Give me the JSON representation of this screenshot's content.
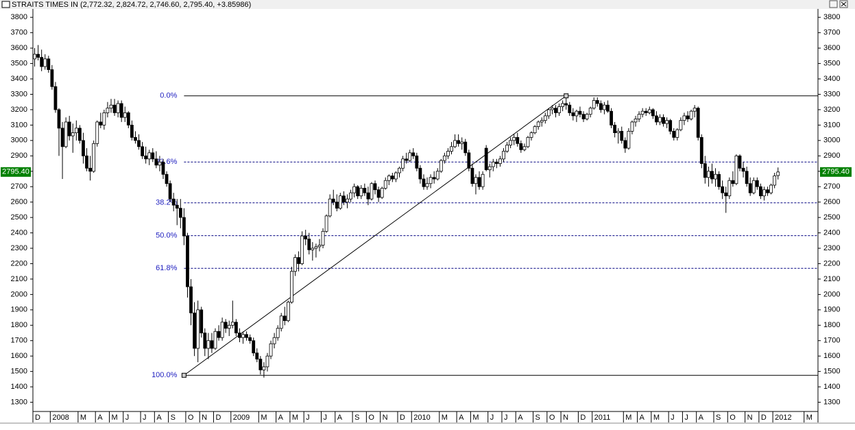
{
  "chart_data": {
    "type": "candlestick",
    "title": "STRAITS TIMES IN (2,772.32, 2,824.72, 2,746.60, 2,795.40, +3.85986)",
    "categories": [
      "D",
      null,
      null,
      null,
      null,
      "2008",
      null,
      null,
      null,
      null,
      null,
      null,
      null,
      "M",
      null,
      null,
      null,
      null,
      "A",
      null,
      null,
      null,
      "M",
      null,
      null,
      null,
      "J",
      null,
      null,
      null,
      null,
      "J",
      null,
      null,
      null,
      "A",
      null,
      null,
      null,
      "S",
      null,
      null,
      null,
      null,
      "O",
      null,
      null,
      null,
      "N",
      null,
      null,
      null,
      "D",
      null,
      null,
      null,
      null,
      "2009",
      null,
      null,
      null,
      null,
      null,
      null,
      null,
      "M",
      null,
      null,
      null,
      null,
      "A",
      null,
      null,
      null,
      "M",
      null,
      null,
      null,
      "J",
      null,
      null,
      null,
      null,
      "J",
      null,
      null,
      null,
      "A",
      null,
      null,
      null,
      null,
      "S",
      null,
      null,
      null,
      "O",
      null,
      null,
      null,
      "N",
      null,
      null,
      null,
      null,
      "D",
      null,
      null,
      null,
      "2010",
      null,
      null,
      null,
      null,
      null,
      null,
      null,
      "M",
      null,
      null,
      null,
      null,
      "A",
      null,
      null,
      null,
      "M",
      null,
      null,
      null,
      null,
      "J",
      null,
      null,
      null,
      "J",
      null,
      null,
      null,
      "A",
      null,
      null,
      null,
      null,
      "S",
      null,
      null,
      null,
      "O",
      null,
      null,
      null,
      "N",
      null,
      null,
      null,
      null,
      "D",
      null,
      null,
      null,
      "2011",
      null,
      null,
      null,
      null,
      null,
      null,
      null,
      null,
      "M",
      null,
      null,
      null,
      "A",
      null,
      null,
      null,
      "M",
      null,
      null,
      null,
      null,
      "J",
      null,
      null,
      null,
      "J",
      null,
      null,
      null,
      "A",
      null,
      null,
      null,
      null,
      "S",
      null,
      null,
      null,
      "O",
      null,
      null,
      null,
      null,
      "N",
      null,
      null,
      null,
      "D",
      null,
      null,
      null,
      "2012",
      null,
      null,
      null,
      null,
      null,
      null,
      null,
      null,
      "M",
      null,
      null,
      null
    ],
    "ohlc": [
      [
        3530,
        3600,
        3480,
        3560
      ],
      [
        3560,
        3620,
        3520,
        3540
      ],
      [
        3540,
        3590,
        3450,
        3480
      ],
      [
        3480,
        3560,
        3460,
        3530
      ],
      [
        3530,
        3550,
        3440,
        3460
      ],
      [
        3460,
        3490,
        3330,
        3350
      ],
      [
        3350,
        3380,
        3180,
        3200
      ],
      [
        3200,
        3210,
        2900,
        3080
      ],
      [
        3080,
        3120,
        2750,
        2960
      ],
      [
        2960,
        3150,
        2950,
        3120
      ],
      [
        3120,
        3160,
        3000,
        3030
      ],
      [
        3030,
        3110,
        2920,
        3050
      ],
      [
        3050,
        3130,
        3000,
        3080
      ],
      [
        3080,
        3100,
        2980,
        3000
      ],
      [
        3000,
        3050,
        2850,
        2900
      ],
      [
        2900,
        2950,
        2800,
        2820
      ],
      [
        2820,
        2900,
        2740,
        2800
      ],
      [
        2800,
        3000,
        2790,
        2980
      ],
      [
        2980,
        3130,
        2960,
        3120
      ],
      [
        3120,
        3180,
        3080,
        3100
      ],
      [
        3100,
        3200,
        3070,
        3180
      ],
      [
        3180,
        3250,
        3150,
        3210
      ],
      [
        3210,
        3270,
        3180,
        3230
      ],
      [
        3230,
        3270,
        3160,
        3180
      ],
      [
        3180,
        3260,
        3150,
        3240
      ],
      [
        3240,
        3260,
        3120,
        3150
      ],
      [
        3150,
        3220,
        3120,
        3180
      ],
      [
        3180,
        3190,
        3080,
        3100
      ],
      [
        3100,
        3130,
        3000,
        3020
      ],
      [
        3020,
        3060,
        2980,
        3000
      ],
      [
        3000,
        3040,
        2940,
        2960
      ],
      [
        2960,
        2990,
        2880,
        2900
      ],
      [
        2900,
        2960,
        2850,
        2880
      ],
      [
        2880,
        2940,
        2840,
        2920
      ],
      [
        2920,
        2950,
        2860,
        2880
      ],
      [
        2880,
        2930,
        2820,
        2840
      ],
      [
        2840,
        2900,
        2800,
        2860
      ],
      [
        2860,
        2880,
        2750,
        2780
      ],
      [
        2780,
        2800,
        2700,
        2720
      ],
      [
        2720,
        2740,
        2600,
        2620
      ],
      [
        2620,
        2660,
        2540,
        2580
      ],
      [
        2580,
        2620,
        2450,
        2560
      ],
      [
        2560,
        2620,
        2430,
        2500
      ],
      [
        2500,
        2560,
        2320,
        2380
      ],
      [
        2380,
        2400,
        1980,
        2050
      ],
      [
        2050,
        2100,
        1800,
        1880
      ],
      [
        1880,
        1950,
        1600,
        1650
      ],
      [
        1650,
        1960,
        1560,
        1900
      ],
      [
        1900,
        1920,
        1720,
        1750
      ],
      [
        1750,
        1780,
        1600,
        1650
      ],
      [
        1650,
        1750,
        1580,
        1700
      ],
      [
        1700,
        1750,
        1620,
        1650
      ],
      [
        1650,
        1780,
        1640,
        1760
      ],
      [
        1760,
        1800,
        1700,
        1720
      ],
      [
        1720,
        1850,
        1700,
        1820
      ],
      [
        1820,
        1840,
        1750,
        1780
      ],
      [
        1780,
        1830,
        1730,
        1800
      ],
      [
        1800,
        1960,
        1780,
        1820
      ],
      [
        1820,
        1840,
        1730,
        1750
      ],
      [
        1750,
        1780,
        1690,
        1720
      ],
      [
        1720,
        1760,
        1680,
        1740
      ],
      [
        1740,
        1760,
        1700,
        1720
      ],
      [
        1720,
        1740,
        1680,
        1700
      ],
      [
        1700,
        1720,
        1600,
        1620
      ],
      [
        1620,
        1650,
        1560,
        1580
      ],
      [
        1580,
        1600,
        1480,
        1510
      ],
      [
        1510,
        1560,
        1460,
        1530
      ],
      [
        1530,
        1620,
        1500,
        1600
      ],
      [
        1600,
        1700,
        1580,
        1680
      ],
      [
        1680,
        1750,
        1650,
        1720
      ],
      [
        1720,
        1800,
        1700,
        1780
      ],
      [
        1780,
        1880,
        1760,
        1860
      ],
      [
        1860,
        1920,
        1800,
        1830
      ],
      [
        1830,
        1960,
        1820,
        1950
      ],
      [
        1950,
        2180,
        1940,
        2150
      ],
      [
        2150,
        2260,
        2120,
        2240
      ],
      [
        2240,
        2280,
        2150,
        2200
      ],
      [
        2200,
        2410,
        2190,
        2380
      ],
      [
        2380,
        2420,
        2320,
        2360
      ],
      [
        2360,
        2400,
        2260,
        2290
      ],
      [
        2290,
        2340,
        2220,
        2300
      ],
      [
        2300,
        2330,
        2240,
        2310
      ],
      [
        2310,
        2360,
        2280,
        2320
      ],
      [
        2320,
        2430,
        2300,
        2410
      ],
      [
        2410,
        2520,
        2400,
        2510
      ],
      [
        2510,
        2650,
        2500,
        2620
      ],
      [
        2620,
        2680,
        2580,
        2600
      ],
      [
        2600,
        2650,
        2540,
        2560
      ],
      [
        2560,
        2660,
        2550,
        2640
      ],
      [
        2640,
        2670,
        2580,
        2600
      ],
      [
        2600,
        2650,
        2560,
        2620
      ],
      [
        2620,
        2680,
        2600,
        2660
      ],
      [
        2660,
        2720,
        2630,
        2700
      ],
      [
        2700,
        2710,
        2620,
        2640
      ],
      [
        2640,
        2710,
        2620,
        2690
      ],
      [
        2690,
        2720,
        2640,
        2660
      ],
      [
        2660,
        2700,
        2580,
        2620
      ],
      [
        2620,
        2730,
        2610,
        2720
      ],
      [
        2720,
        2740,
        2650,
        2680
      ],
      [
        2680,
        2700,
        2600,
        2630
      ],
      [
        2630,
        2700,
        2620,
        2690
      ],
      [
        2690,
        2760,
        2680,
        2740
      ],
      [
        2740,
        2780,
        2710,
        2770
      ],
      [
        2770,
        2790,
        2730,
        2750
      ],
      [
        2750,
        2800,
        2730,
        2790
      ],
      [
        2790,
        2830,
        2760,
        2820
      ],
      [
        2820,
        2900,
        2800,
        2880
      ],
      [
        2880,
        2920,
        2850,
        2870
      ],
      [
        2870,
        2940,
        2860,
        2920
      ],
      [
        2920,
        2950,
        2880,
        2900
      ],
      [
        2900,
        2920,
        2800,
        2820
      ],
      [
        2820,
        2840,
        2720,
        2750
      ],
      [
        2750,
        2780,
        2680,
        2700
      ],
      [
        2700,
        2760,
        2680,
        2720
      ],
      [
        2720,
        2780,
        2690,
        2760
      ],
      [
        2760,
        2800,
        2720,
        2750
      ],
      [
        2750,
        2820,
        2740,
        2800
      ],
      [
        2800,
        2880,
        2790,
        2870
      ],
      [
        2870,
        2920,
        2850,
        2900
      ],
      [
        2900,
        2950,
        2880,
        2930
      ],
      [
        2930,
        2990,
        2910,
        2960
      ],
      [
        2960,
        3040,
        2950,
        3000
      ],
      [
        3000,
        3040,
        2960,
        2980
      ],
      [
        2980,
        3020,
        2940,
        2990
      ],
      [
        2990,
        3010,
        2900,
        2920
      ],
      [
        2920,
        2940,
        2800,
        2820
      ],
      [
        2820,
        2850,
        2700,
        2720
      ],
      [
        2720,
        2780,
        2650,
        2760
      ],
      [
        2760,
        2800,
        2680,
        2700
      ],
      [
        2700,
        2800,
        2680,
        2780
      ],
      [
        2950,
        2970,
        2800,
        2810
      ],
      [
        2810,
        2850,
        2760,
        2830
      ],
      [
        2830,
        2880,
        2800,
        2860
      ],
      [
        2860,
        2880,
        2820,
        2850
      ],
      [
        2850,
        2900,
        2830,
        2880
      ],
      [
        2880,
        2950,
        2860,
        2930
      ],
      [
        2930,
        2990,
        2920,
        2970
      ],
      [
        2970,
        3020,
        2950,
        3000
      ],
      [
        3000,
        3040,
        2970,
        3020
      ],
      [
        3020,
        3050,
        2960,
        2980
      ],
      [
        2980,
        3000,
        2920,
        2940
      ],
      [
        2940,
        2980,
        2930,
        2960
      ],
      [
        2960,
        3030,
        2950,
        3020
      ],
      [
        3020,
        3060,
        3000,
        3050
      ],
      [
        3050,
        3100,
        3040,
        3090
      ],
      [
        3090,
        3130,
        3070,
        3120
      ],
      [
        3120,
        3150,
        3090,
        3130
      ],
      [
        3130,
        3180,
        3110,
        3160
      ],
      [
        3160,
        3210,
        3140,
        3200
      ],
      [
        3200,
        3230,
        3170,
        3210
      ],
      [
        3210,
        3230,
        3150,
        3180
      ],
      [
        3180,
        3240,
        3160,
        3220
      ],
      [
        3220,
        3260,
        3190,
        3240
      ],
      [
        3240,
        3290,
        3200,
        3230
      ],
      [
        3230,
        3250,
        3160,
        3180
      ],
      [
        3180,
        3210,
        3130,
        3160
      ],
      [
        3160,
        3200,
        3120,
        3190
      ],
      [
        3190,
        3220,
        3150,
        3170
      ],
      [
        3170,
        3190,
        3120,
        3140
      ],
      [
        3140,
        3180,
        3130,
        3170
      ],
      [
        3170,
        3220,
        3150,
        3210
      ],
      [
        3210,
        3280,
        3200,
        3260
      ],
      [
        3260,
        3280,
        3220,
        3240
      ],
      [
        3240,
        3260,
        3180,
        3200
      ],
      [
        3200,
        3250,
        3170,
        3230
      ],
      [
        3230,
        3260,
        3180,
        3190
      ],
      [
        3190,
        3210,
        3080,
        3100
      ],
      [
        3100,
        3120,
        3020,
        3050
      ],
      [
        3050,
        3080,
        2980,
        3060
      ],
      [
        3060,
        3090,
        2980,
        3000
      ],
      [
        3000,
        3020,
        2920,
        2950
      ],
      [
        2950,
        3080,
        2940,
        3060
      ],
      [
        3060,
        3130,
        3040,
        3120
      ],
      [
        3120,
        3160,
        3090,
        3140
      ],
      [
        3140,
        3190,
        3120,
        3170
      ],
      [
        3170,
        3210,
        3150,
        3190
      ],
      [
        3190,
        3210,
        3160,
        3180
      ],
      [
        3180,
        3220,
        3170,
        3200
      ],
      [
        3200,
        3210,
        3140,
        3160
      ],
      [
        3160,
        3190,
        3100,
        3120
      ],
      [
        3120,
        3170,
        3100,
        3150
      ],
      [
        3150,
        3170,
        3090,
        3110
      ],
      [
        3110,
        3150,
        3080,
        3130
      ],
      [
        3130,
        3140,
        3040,
        3060
      ],
      [
        3060,
        3080,
        3000,
        3020
      ],
      [
        3020,
        3080,
        3000,
        3070
      ],
      [
        3070,
        3150,
        3060,
        3130
      ],
      [
        3130,
        3180,
        3100,
        3160
      ],
      [
        3160,
        3190,
        3120,
        3140
      ],
      [
        3140,
        3200,
        3130,
        3190
      ],
      [
        3190,
        3230,
        3150,
        3210
      ],
      [
        3210,
        3220,
        3000,
        3020
      ],
      [
        3020,
        3040,
        2820,
        2850
      ],
      [
        2850,
        2900,
        2720,
        2760
      ],
      [
        2760,
        2830,
        2700,
        2800
      ],
      [
        2800,
        2850,
        2720,
        2750
      ],
      [
        2750,
        2820,
        2700,
        2780
      ],
      [
        2780,
        2800,
        2680,
        2700
      ],
      [
        2700,
        2740,
        2620,
        2660
      ],
      [
        2660,
        2700,
        2530,
        2640
      ],
      [
        2640,
        2760,
        2620,
        2740
      ],
      [
        2740,
        2800,
        2700,
        2720
      ],
      [
        2720,
        2910,
        2710,
        2900
      ],
      [
        2900,
        2910,
        2800,
        2820
      ],
      [
        2820,
        2860,
        2760,
        2800
      ],
      [
        2800,
        2830,
        2700,
        2720
      ],
      [
        2720,
        2760,
        2640,
        2660
      ],
      [
        2660,
        2760,
        2650,
        2740
      ],
      [
        2740,
        2760,
        2680,
        2700
      ],
      [
        2700,
        2720,
        2620,
        2640
      ],
      [
        2640,
        2700,
        2610,
        2680
      ],
      [
        2680,
        2700,
        2640,
        2660
      ],
      [
        2660,
        2720,
        2650,
        2710
      ],
      [
        2710,
        2790,
        2690,
        2770
      ],
      [
        2772.32,
        2824.72,
        2746.6,
        2795.4
      ],
      null,
      null,
      null,
      null,
      null,
      null,
      null,
      null,
      null,
      null,
      null
    ],
    "ylim": [
      1240,
      3850
    ],
    "yticks": [
      1300,
      1400,
      1500,
      1600,
      1700,
      1800,
      1900,
      2000,
      2100,
      2200,
      2300,
      2400,
      2500,
      2600,
      2700,
      2800,
      2900,
      3000,
      3100,
      3200,
      3300,
      3400,
      3500,
      3600,
      3700,
      3800
    ],
    "up_color": "#ffffff",
    "down_color": "#000000",
    "last_price": {
      "value": 2795.4,
      "label": "2795.40"
    },
    "fibonacci": {
      "color": "#2020c0",
      "levels": [
        {
          "label": "0.0%",
          "price": 3290
        },
        {
          "label": "23.6%",
          "price": 2860
        },
        {
          "label": "38.2%",
          "price": 2595
        },
        {
          "label": "50.0%",
          "price": 2382
        },
        {
          "label": "61.8%",
          "price": 2170
        },
        {
          "label": "100.0%",
          "price": 1475
        }
      ],
      "anchors": [
        {
          "index": 43,
          "price": 1475
        },
        {
          "index": 153,
          "price": 3290
        }
      ]
    }
  }
}
